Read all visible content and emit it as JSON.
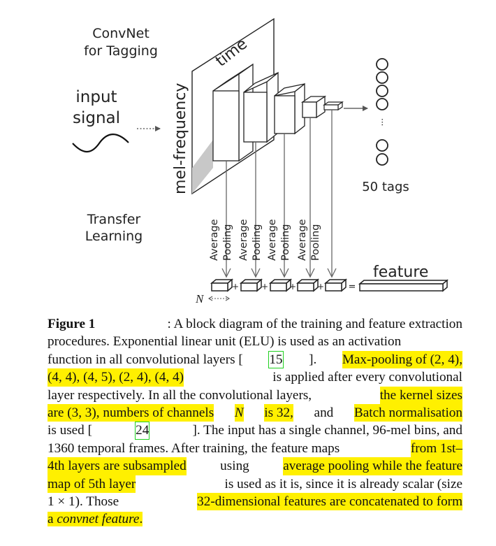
{
  "diagram": {
    "title_lines": [
      "ConvNet",
      "for Tagging"
    ],
    "input_lines": [
      "input",
      "signal"
    ],
    "axis_time": "time",
    "axis_freq": "mel-frequency",
    "tags_label": "50 tags",
    "tags_ellipsis": "···",
    "transfer_lines": [
      "Transfer",
      "Learning"
    ],
    "pool_lines": [
      "Average",
      "Pooling"
    ],
    "feature_label": "feature",
    "n_label": "N",
    "plus": "+",
    "equals": "="
  },
  "caption": {
    "lines": [
      [
        {
          "t": "Figure 1",
          "c": "lab"
        },
        {
          "t": ": A block diagram of the training and feature extraction"
        }
      ],
      [
        {
          "t": "procedures. Exponential linear unit (ELU) is used as an activation"
        }
      ],
      [
        {
          "t": "function in all convolutional layers ["
        },
        {
          "t": "15",
          "c": "ref"
        },
        {
          "t": "]. "
        },
        {
          "t": " Max-pooling of (2, 4),",
          "c": "hl"
        }
      ],
      [
        {
          "t": "(4, 4), (4, 5), (2, 4), (4, 4)",
          "c": "hl"
        },
        {
          "t": " is applied after every convolutional"
        }
      ],
      [
        {
          "t": "layer respectively. In all the convolutional layers, "
        },
        {
          "t": "the kernel sizes",
          "c": "hl"
        }
      ],
      [
        {
          "t": "are (3, 3), numbers of channels ",
          "c": "hl"
        },
        {
          "t": "N",
          "c": "hl i"
        },
        {
          "t": " is 32,",
          "c": "hl"
        },
        {
          "t": " and "
        },
        {
          "t": "Batch normalisation",
          "c": "hl"
        }
      ],
      [
        {
          "t": "is used ["
        },
        {
          "t": "24",
          "c": "ref"
        },
        {
          "t": "].  The input has a single channel, 96-mel bins, and"
        }
      ],
      [
        {
          "t": "1360 temporal frames. After training, the feature maps "
        },
        {
          "t": "from 1st–",
          "c": "hl"
        }
      ],
      [
        {
          "t": "4th layers are subsampled",
          "c": "hl"
        },
        {
          "t": " using "
        },
        {
          "t": "average pooling while the feature",
          "c": "hl"
        }
      ],
      [
        {
          "t": "map of 5th layer",
          "c": "hl"
        },
        {
          "t": " is used as it is, since it is already scalar (size"
        }
      ],
      [
        {
          "t": "1 × 1). Those "
        },
        {
          "t": "32-dimensional features are concatenated to form",
          "c": "hl"
        }
      ],
      [
        {
          "t": "a ",
          "c": "hl"
        },
        {
          "t": "convnet feature",
          "c": "hl i"
        },
        {
          "t": ".",
          "c": "hl"
        }
      ]
    ]
  }
}
